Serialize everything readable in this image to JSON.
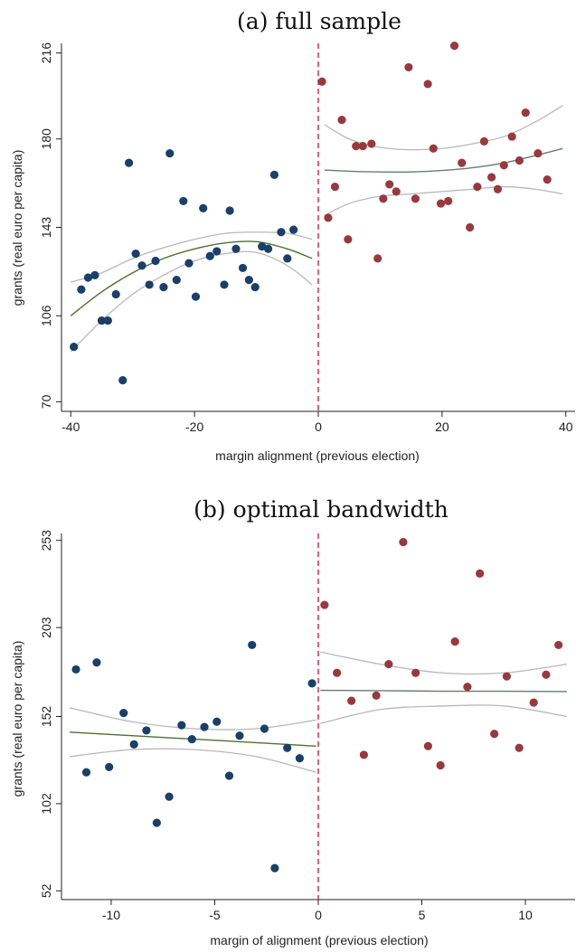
{
  "chart_data": [
    {
      "type": "scatter",
      "title": "(a) full sample",
      "xlabel": "margin alignment (previous election)",
      "ylabel": "grants (real euro per capita)",
      "xlim": [
        -41.5,
        41.5
      ],
      "ylim": [
        66,
        220
      ],
      "xticks": [
        -40,
        -20,
        0,
        20,
        40
      ],
      "yticks": [
        70,
        106,
        143,
        180,
        216
      ],
      "cutoff": 0,
      "colors": {
        "left": "#1b3f66",
        "right": "#963a3e",
        "fit_left": "#4f7033",
        "fit_right": "#5f8070",
        "ci": "#b8b8b8",
        "cutoff": "#cc1f4d"
      },
      "series": [
        {
          "points": [
            [
              -39.5,
              93
            ],
            [
              -38.3,
              117
            ],
            [
              -37.2,
              122
            ],
            [
              -36.1,
              123
            ],
            [
              -35,
              104
            ],
            [
              -34,
              104
            ],
            [
              -32.7,
              115
            ],
            [
              -31.6,
              79
            ],
            [
              -30.6,
              170
            ],
            [
              -29.5,
              132
            ],
            [
              -28.5,
              127
            ],
            [
              -27.3,
              119
            ],
            [
              -26.3,
              129
            ],
            [
              -25,
              118
            ],
            [
              -24,
              174
            ],
            [
              -22.9,
              121
            ],
            [
              -21.8,
              154
            ],
            [
              -20.9,
              128
            ],
            [
              -19.8,
              114
            ],
            [
              -18.6,
              151
            ],
            [
              -17.5,
              131
            ],
            [
              -16.4,
              133
            ],
            [
              -15.2,
              119
            ],
            [
              -14.3,
              150
            ],
            [
              -13.3,
              134
            ],
            [
              -12.2,
              126
            ],
            [
              -11.2,
              121
            ],
            [
              -10.2,
              118
            ],
            [
              -9.1,
              135
            ],
            [
              -8.1,
              134
            ],
            [
              -7.1,
              165
            ],
            [
              -6,
              141
            ],
            [
              -5,
              130
            ],
            [
              -4,
              142
            ]
          ]
        },
        {
          "points": [
            [
              0.6,
              204
            ],
            [
              1.6,
              147
            ],
            [
              2.7,
              160
            ],
            [
              3.8,
              188
            ],
            [
              4.8,
              138
            ],
            [
              6.1,
              177
            ],
            [
              7.2,
              177
            ],
            [
              8.6,
              178
            ],
            [
              9.6,
              130
            ],
            [
              10.5,
              155
            ],
            [
              11.5,
              161
            ],
            [
              12.6,
              158
            ],
            [
              14.6,
              210
            ],
            [
              15.7,
              155
            ],
            [
              17.7,
              203
            ],
            [
              18.6,
              176
            ],
            [
              19.8,
              153
            ],
            [
              21,
              154
            ],
            [
              22,
              219
            ],
            [
              23.2,
              170
            ],
            [
              24.5,
              143
            ],
            [
              25.7,
              160
            ],
            [
              26.8,
              179
            ],
            [
              28,
              164
            ],
            [
              29,
              159
            ],
            [
              30,
              169
            ],
            [
              31.3,
              181
            ],
            [
              32.5,
              171
            ],
            [
              33.5,
              191
            ],
            [
              35.5,
              174
            ],
            [
              37,
              163
            ]
          ]
        }
      ],
      "fit_left": {
        "x": [
          -40,
          -35,
          -30,
          -25,
          -20,
          -15,
          -10,
          -5,
          -1
        ],
        "y": [
          106,
          116,
          124,
          130,
          134,
          136.5,
          137,
          134,
          130
        ]
      },
      "ci_left_upper": {
        "x": [
          -40,
          -35,
          -30,
          -25,
          -20,
          -15,
          -10,
          -5,
          -1
        ],
        "y": [
          120,
          124,
          130,
          134.5,
          138,
          140.5,
          141,
          140.5,
          138
        ]
      },
      "ci_left_lower": {
        "x": [
          -40,
          -35,
          -30,
          -25,
          -20,
          -15,
          -10,
          -5,
          -1
        ],
        "y": [
          91,
          104,
          115,
          123,
          129,
          132,
          132.5,
          127,
          119
        ]
      },
      "fit_right": {
        "x": [
          1,
          5,
          10,
          15,
          20,
          25,
          30,
          35,
          39.5
        ],
        "y": [
          167,
          166.5,
          166.2,
          166.2,
          166.8,
          168,
          170,
          173,
          176
        ]
      },
      "ci_right_upper": {
        "x": [
          1,
          5,
          10,
          15,
          20,
          25,
          30,
          35,
          39.5
        ],
        "y": [
          186,
          180,
          176.5,
          175.5,
          176,
          178,
          181,
          187,
          194
        ]
      },
      "ci_right_lower": {
        "x": [
          1,
          5,
          10,
          15,
          20,
          25,
          30,
          35,
          39.5
        ],
        "y": [
          148,
          153,
          156,
          157,
          158,
          159,
          160,
          159,
          157
        ]
      }
    },
    {
      "type": "scatter",
      "title": "(b) optimal bandwidth",
      "xlabel": "margin of alignment (previous election)",
      "ylabel": "grants (real euro per capita)",
      "xlim": [
        -12.4,
        12.4
      ],
      "ylim": [
        47,
        257
      ],
      "xticks": [
        -10,
        -5,
        0,
        5,
        10
      ],
      "yticks": [
        52,
        102,
        152,
        203,
        253
      ],
      "cutoff": 0,
      "colors": {
        "left": "#1b3f66",
        "right": "#963a3e",
        "fit_left": "#4f7033",
        "fit_right": "#5f8070",
        "ci": "#b8b8b8",
        "cutoff": "#cc1f4d"
      },
      "series": [
        {
          "points": [
            [
              -11.7,
              179
            ],
            [
              -11.2,
              120
            ],
            [
              -10.7,
              183
            ],
            [
              -10.1,
              123
            ],
            [
              -9.4,
              154
            ],
            [
              -8.9,
              136
            ],
            [
              -8.3,
              144
            ],
            [
              -7.8,
              91
            ],
            [
              -7.2,
              106
            ],
            [
              -6.6,
              147
            ],
            [
              -6.1,
              139
            ],
            [
              -5.5,
              146
            ],
            [
              -4.9,
              149
            ],
            [
              -4.3,
              118
            ],
            [
              -3.8,
              141
            ],
            [
              -3.2,
              193
            ],
            [
              -2.6,
              145
            ],
            [
              -2.1,
              65
            ],
            [
              -1.5,
              134
            ],
            [
              -0.9,
              128
            ],
            [
              -0.3,
              171
            ]
          ]
        },
        {
          "points": [
            [
              0.3,
              216
            ],
            [
              0.9,
              177
            ],
            [
              1.6,
              161
            ],
            [
              2.2,
              130
            ],
            [
              2.8,
              164
            ],
            [
              3.4,
              182
            ],
            [
              4.1,
              252
            ],
            [
              4.7,
              177
            ],
            [
              5.3,
              135
            ],
            [
              5.9,
              124
            ],
            [
              6.6,
              195
            ],
            [
              7.2,
              169
            ],
            [
              7.8,
              234
            ],
            [
              8.5,
              142
            ],
            [
              9.1,
              175
            ],
            [
              9.7,
              134
            ],
            [
              10.4,
              160
            ],
            [
              11,
              176
            ],
            [
              11.6,
              193
            ]
          ]
        }
      ],
      "fit_left": {
        "x": [
          -12,
          -9,
          -6,
          -3,
          -0.1
        ],
        "y": [
          143,
          141,
          139,
          137,
          135
        ]
      },
      "ci_left_upper": {
        "x": [
          -12,
          -9,
          -6,
          -3,
          -0.1
        ],
        "y": [
          157,
          149,
          145,
          145,
          150
        ]
      },
      "ci_left_lower": {
        "x": [
          -12,
          -9,
          -6,
          -3,
          -0.1
        ],
        "y": [
          129,
          133,
          133,
          129,
          120
        ]
      },
      "fit_right": {
        "x": [
          0.1,
          3,
          6,
          9,
          12
        ],
        "y": [
          167,
          166.8,
          166.5,
          166.5,
          166.3
        ]
      },
      "ci_right_upper": {
        "x": [
          0.1,
          3,
          6,
          9,
          12
        ],
        "y": [
          189,
          182,
          177,
          177,
          182
        ]
      },
      "ci_right_lower": {
        "x": [
          0.1,
          3,
          6,
          9,
          12
        ],
        "y": [
          148,
          156,
          158,
          158,
          152
        ]
      }
    }
  ]
}
